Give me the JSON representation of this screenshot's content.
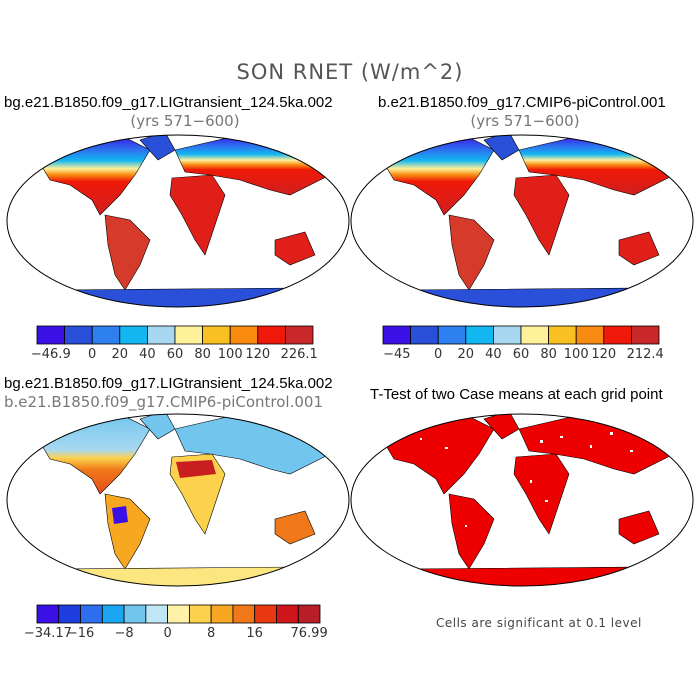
{
  "figure": {
    "title": "SON RNET (W/m^2)",
    "case_lig": "bg.e21.B1850.f09_g17.LIGtransient_124.5ka.002",
    "case_pi": "b.e21.B1850.f09_g17.CMIP6-piControl.001",
    "years": "(yrs 571−600)",
    "ttest_title": "T-Test of two Case means at each grid point",
    "significance_note": "Cells are significant at 0.1 level"
  },
  "colorbars": [
    {
      "ticks": [
        "−46.9",
        "0",
        "20",
        "40",
        "60",
        "80",
        "100",
        "120",
        "226.1"
      ],
      "colors": [
        "#3a10e6",
        "#2a4fd8",
        "#2e7ff0",
        "#12b6f0",
        "#a8d8f0",
        "#fff09a",
        "#f8c020",
        "#f88a10",
        "#f01808",
        "#c8282a"
      ]
    },
    {
      "ticks": [
        "−45",
        "0",
        "20",
        "40",
        "60",
        "80",
        "100",
        "120",
        "212.4"
      ],
      "colors": [
        "#3a10e6",
        "#2a4fd8",
        "#2e7ff0",
        "#12b6f0",
        "#a8d8f0",
        "#fff09a",
        "#f8c020",
        "#f88a10",
        "#f01808",
        "#c8282a"
      ]
    },
    {
      "ticks": [
        "−34.17",
        "−16",
        "−8",
        "0",
        "8",
        "16",
        "76.99"
      ],
      "colors": [
        "#3a10e6",
        "#1f3ee0",
        "#2e6ff0",
        "#1aa6f0",
        "#72c6ee",
        "#c0e6f6",
        "#fff2a8",
        "#fcd24c",
        "#f8a820",
        "#f07818",
        "#e83812",
        "#d0161a",
        "#b81e28"
      ]
    }
  ],
  "colors": {
    "ocean": "#ffffff",
    "coast": "#000000",
    "sig": "#ee0000"
  }
}
